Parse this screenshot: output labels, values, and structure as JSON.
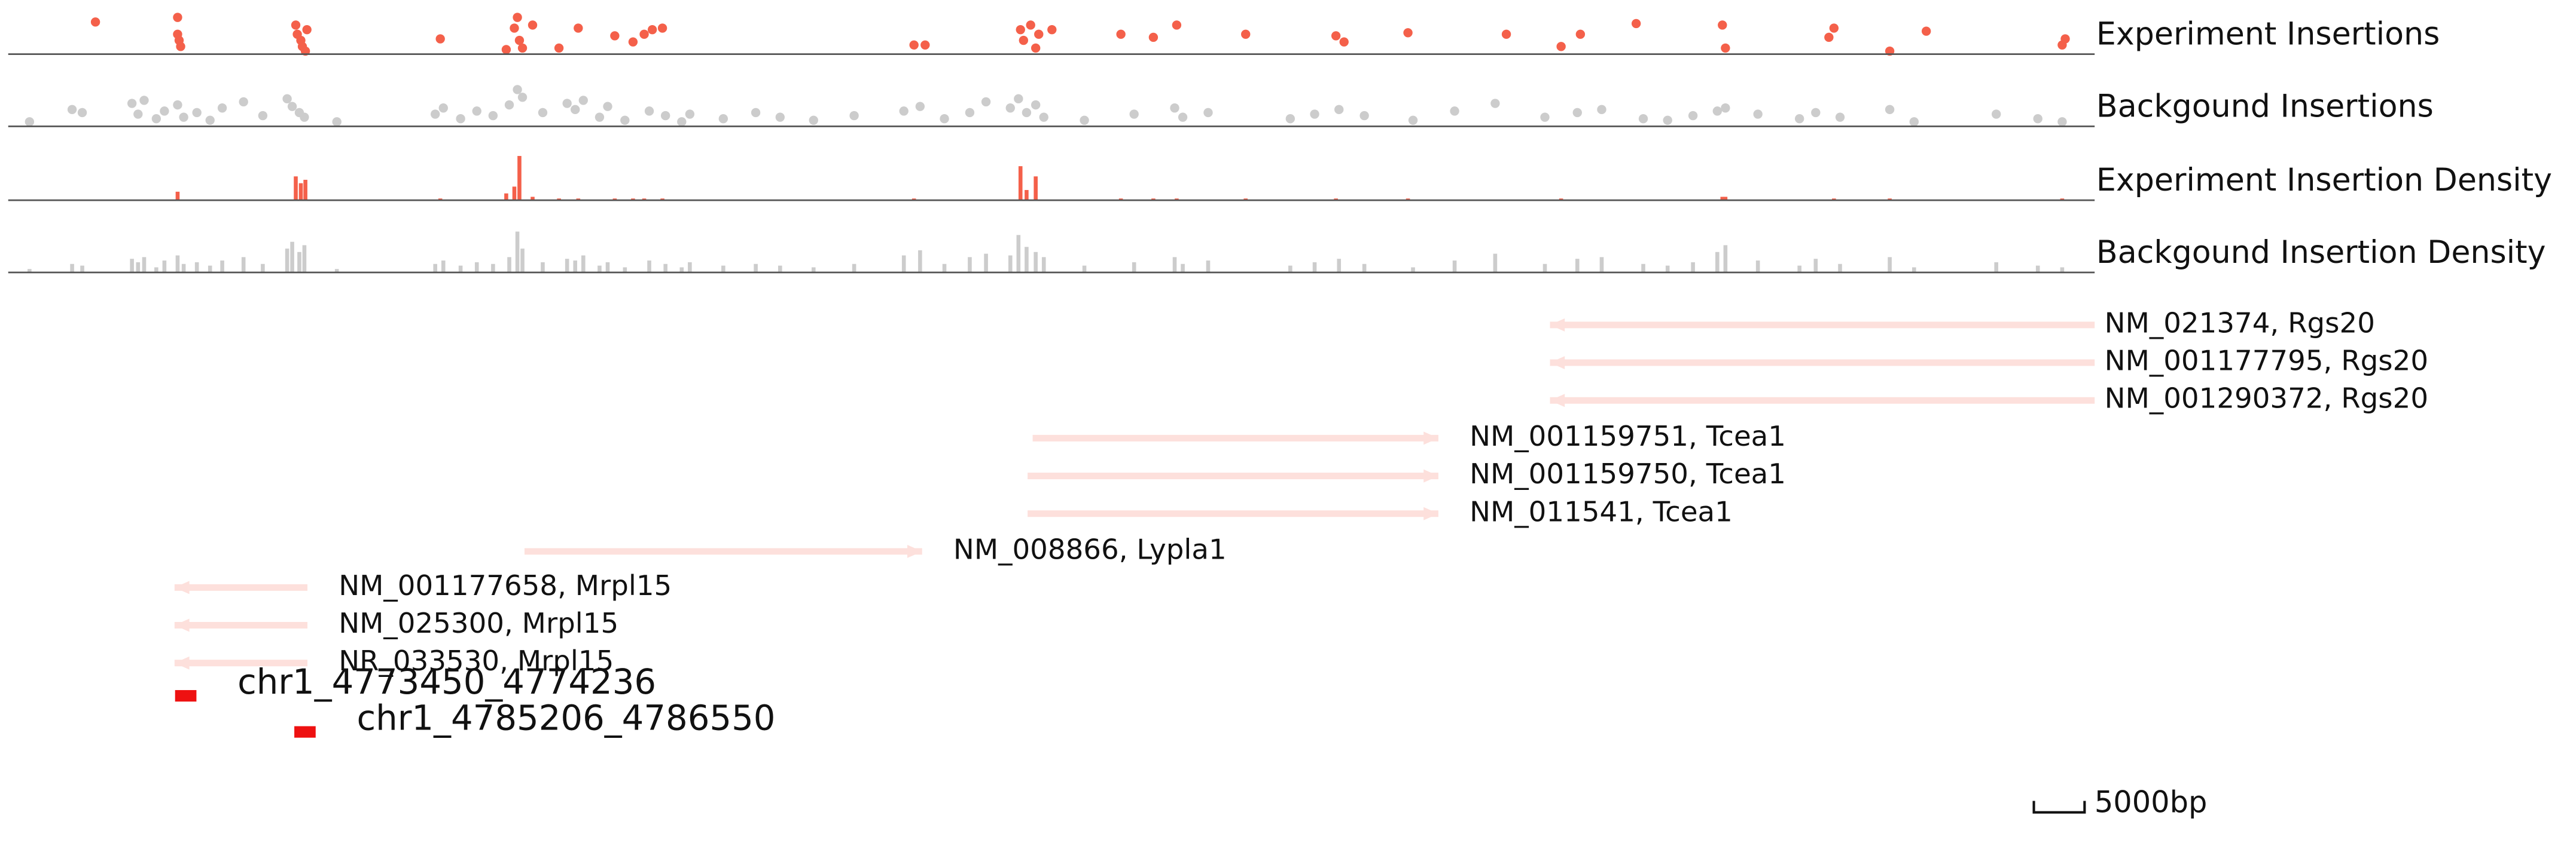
{
  "chart_data": {
    "type": "tracks",
    "xlim": [
      4757000,
      4962700
    ],
    "tracks": [
      {
        "name": "Experiment Insertions",
        "type": "scatter",
        "color": "#f4604a",
        "ylim": [
          0,
          30
        ],
        "x": [
          4765600,
          4773700,
          4773700,
          4773850,
          4774000,
          4785350,
          4785500,
          4785850,
          4786000,
          4786300,
          4786450,
          4799600,
          4806100,
          4806900,
          4807200,
          4807400,
          4807700,
          4808700,
          4811300,
          4813200,
          4816800,
          4818600,
          4819700,
          4820500,
          4821500,
          4846300,
          4847400,
          4856800,
          4857100,
          4857800,
          4858300,
          4858600,
          4859900,
          4866700,
          4869900,
          4872200,
          4879000,
          4887900,
          4888700,
          4895000,
          4904700,
          4910100,
          4912000,
          4917500,
          4926000,
          4926300,
          4936500,
          4937000,
          4942500,
          4946100,
          4959500,
          4959800
        ],
        "values": [
          21,
          24,
          13,
          9,
          5,
          19,
          13,
          9,
          5,
          2,
          16,
          10,
          3,
          17,
          24,
          9,
          4,
          19,
          4,
          17,
          12,
          8,
          13,
          16,
          17,
          6,
          6,
          16,
          9,
          19,
          4,
          13,
          16,
          13,
          11,
          19,
          13,
          12,
          8,
          14,
          13,
          5,
          13,
          20,
          19,
          4,
          11,
          17,
          2,
          15,
          6,
          10
        ]
      },
      {
        "name": "Backgound Insertions",
        "type": "scatter",
        "color": "#cccccc",
        "ylim": [
          0,
          30
        ],
        "x": [
          4759100,
          4763300,
          4764300,
          4769200,
          4769800,
          4770400,
          4771600,
          4772400,
          4773700,
          4774300,
          4775600,
          4776900,
          4778100,
          4780200,
          4782100,
          4784500,
          4785000,
          4785700,
          4786200,
          4789400,
          4799100,
          4799900,
          4801600,
          4803200,
          4804800,
          4806400,
          4807200,
          4807700,
          4809700,
          4812100,
          4812900,
          4813700,
          4815300,
          4816100,
          4817800,
          4820200,
          4821800,
          4823400,
          4824200,
          4827500,
          4830700,
          4833100,
          4836400,
          4840400,
          4845300,
          4846900,
          4849300,
          4851800,
          4853400,
          4855800,
          4856600,
          4857400,
          4858300,
          4859100,
          4863100,
          4868000,
          4872000,
          4872800,
          4875300,
          4883400,
          4885800,
          4888200,
          4890700,
          4895500,
          4899600,
          4903600,
          4908500,
          4911700,
          4914100,
          4918200,
          4920600,
          4923100,
          4925500,
          4926300,
          4929500,
          4933600,
          4935200,
          4937600,
          4942500,
          4944900,
          4953000,
          4957100,
          4959500
        ],
        "values": [
          3,
          11,
          9,
          15,
          8,
          17,
          5,
          10,
          14,
          6,
          9,
          4,
          12,
          16,
          7,
          18,
          13,
          9,
          6,
          3,
          8,
          12,
          5,
          10,
          7,
          14,
          24,
          19,
          9,
          15,
          11,
          17,
          6,
          13,
          4,
          10,
          7,
          3,
          8,
          5,
          9,
          6,
          4,
          7,
          10,
          13,
          5,
          9,
          16,
          12,
          18,
          9,
          14,
          6,
          4,
          8,
          12,
          6,
          9,
          5,
          8,
          11,
          7,
          4,
          10,
          15,
          6,
          9,
          11,
          5,
          4,
          7,
          10,
          12,
          8,
          5,
          9,
          6,
          11,
          3,
          8,
          5,
          3
        ]
      },
      {
        "name": "Experiment Insertion Density",
        "type": "bar",
        "color": "#f4604a",
        "ylim": [
          0,
          27
        ],
        "x": [
          4773700,
          4785350,
          4785850,
          4786300,
          4799600,
          4806100,
          4806900,
          4807400,
          4808700,
          4811300,
          4813200,
          4816800,
          4818600,
          4819700,
          4821500,
          4846300,
          4856800,
          4857400,
          4858300,
          4866700,
          4869900,
          4872200,
          4879000,
          4887900,
          4895000,
          4910100,
          4926000,
          4926300,
          4937000,
          4942500,
          4959500
        ],
        "values": [
          5,
          14,
          10,
          12,
          1,
          4,
          8,
          26,
          2,
          1,
          1,
          1,
          1,
          1,
          1,
          1,
          20,
          6,
          14,
          1,
          1,
          1,
          1,
          1,
          1,
          1,
          2,
          2,
          1,
          1,
          1
        ]
      },
      {
        "name": "Backgound Insertion Density",
        "type": "bar",
        "color": "#cccccc",
        "ylim": [
          0,
          27
        ],
        "x": [
          4759100,
          4763300,
          4764300,
          4769200,
          4769800,
          4770400,
          4771600,
          4772400,
          4773700,
          4774300,
          4775600,
          4776900,
          4778100,
          4780200,
          4782100,
          4784500,
          4785000,
          4785700,
          4786200,
          4789400,
          4799100,
          4799900,
          4801600,
          4803200,
          4804800,
          4806400,
          4807200,
          4807700,
          4809700,
          4812100,
          4812900,
          4813700,
          4815300,
          4816100,
          4817800,
          4820200,
          4821800,
          4823400,
          4824200,
          4827500,
          4830700,
          4833100,
          4836400,
          4840400,
          4845300,
          4846900,
          4849300,
          4851800,
          4853400,
          4855800,
          4856600,
          4857400,
          4858300,
          4859100,
          4863100,
          4868000,
          4872000,
          4872800,
          4875300,
          4883400,
          4885800,
          4888200,
          4890700,
          4895500,
          4899600,
          4903600,
          4908500,
          4911700,
          4914100,
          4918200,
          4920600,
          4923100,
          4925500,
          4926300,
          4929500,
          4933600,
          4935200,
          4937600,
          4942500,
          4944900,
          4953000,
          4957100,
          4959500
        ],
        "values": [
          2,
          5,
          4,
          8,
          6,
          9,
          3,
          7,
          10,
          5,
          6,
          4,
          7,
          9,
          5,
          14,
          18,
          12,
          16,
          2,
          5,
          7,
          4,
          6,
          5,
          9,
          24,
          14,
          6,
          8,
          7,
          10,
          4,
          6,
          3,
          7,
          5,
          3,
          6,
          4,
          5,
          4,
          3,
          5,
          10,
          13,
          5,
          9,
          11,
          10,
          22,
          15,
          12,
          9,
          4,
          6,
          9,
          5,
          7,
          4,
          6,
          8,
          5,
          3,
          7,
          11,
          5,
          8,
          9,
          5,
          4,
          6,
          12,
          16,
          7,
          4,
          8,
          5,
          9,
          3,
          6,
          4,
          3
        ]
      }
    ],
    "genes": [
      {
        "label": "NM_021374, Rgs20",
        "start": 4909000,
        "end": 4962700,
        "strand": "-"
      },
      {
        "label": "NM_001177795, Rgs20",
        "start": 4909000,
        "end": 4962700,
        "strand": "-"
      },
      {
        "label": "NM_001290372, Rgs20",
        "start": 4909000,
        "end": 4962700,
        "strand": "-"
      },
      {
        "label": "NM_001159751, Tcea1",
        "start": 4858000,
        "end": 4898000,
        "strand": "+"
      },
      {
        "label": "NM_001159750, Tcea1",
        "start": 4857500,
        "end": 4898000,
        "strand": "+"
      },
      {
        "label": "NM_011541, Tcea1",
        "start": 4857500,
        "end": 4898000,
        "strand": "+"
      },
      {
        "label": "NM_008866, Lypla1",
        "start": 4807900,
        "end": 4847100,
        "strand": "+"
      },
      {
        "label": "NM_001177658, Mrpl15",
        "start": 4773400,
        "end": 4786500,
        "strand": "-"
      },
      {
        "label": "NM_025300, Mrpl15",
        "start": 4773400,
        "end": 4786500,
        "strand": "-"
      },
      {
        "label": "NR_033530, Mrpl15",
        "start": 4773400,
        "end": 4786500,
        "strand": "-"
      }
    ],
    "gene_color": "#fde0dc",
    "peaks": [
      {
        "label": "chr1_4773450_4774236",
        "start": 4773450,
        "end": 4774236
      },
      {
        "label": "chr1_4785206_4786550",
        "start": 4785206,
        "end": 4786550
      }
    ],
    "peak_color": "#ee1111",
    "scale_bar": {
      "value": 5000,
      "label": "5000bp"
    }
  }
}
